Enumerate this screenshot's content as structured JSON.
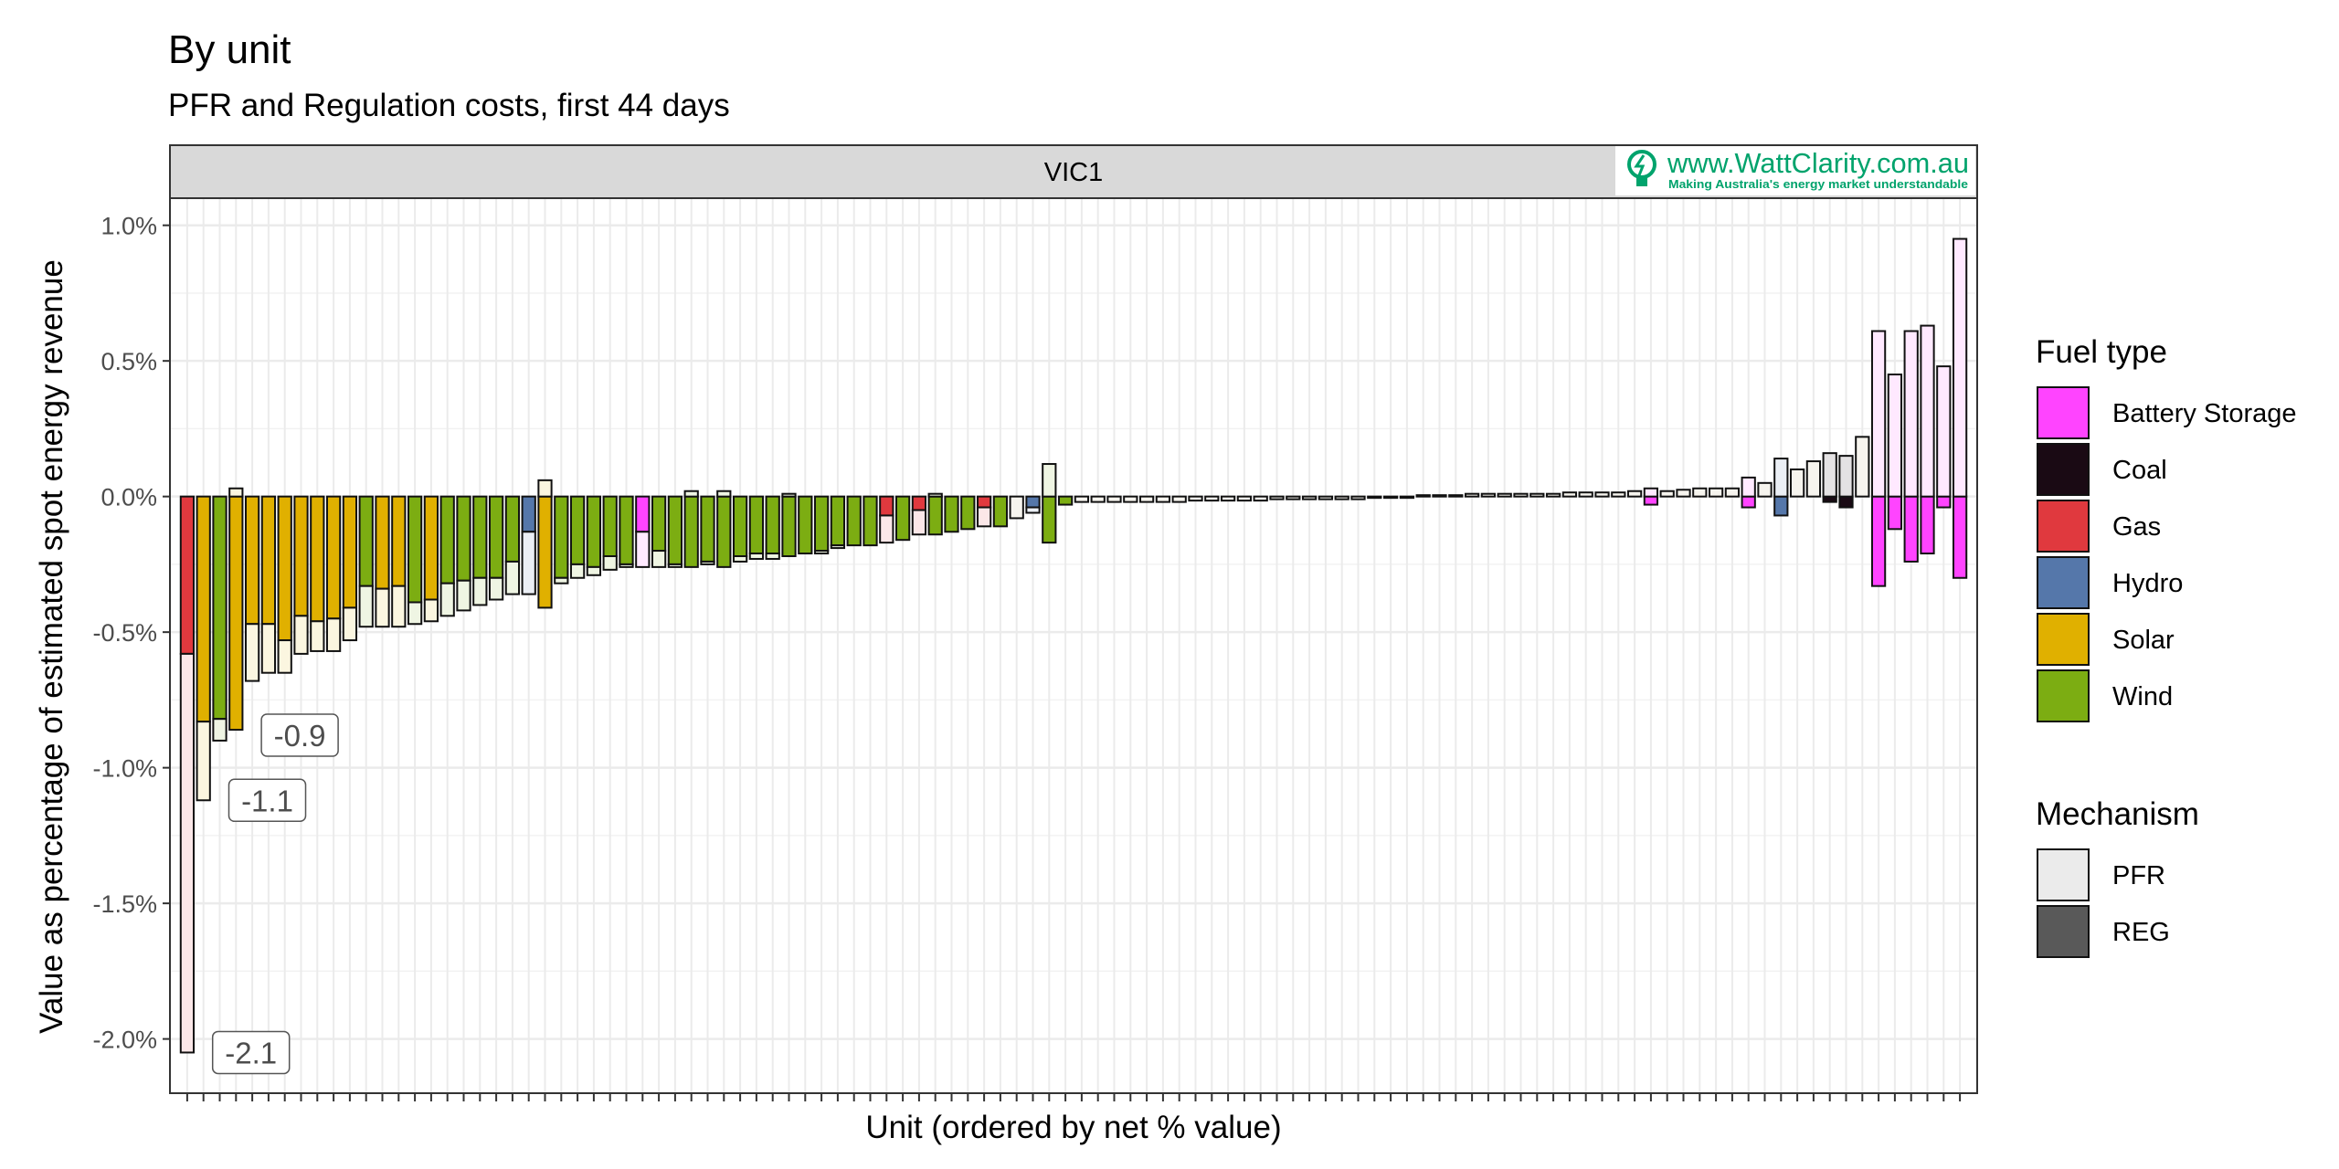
{
  "chart_data": {
    "type": "bar",
    "title": "By unit",
    "subtitle": "PFR and Regulation costs, first 44 days",
    "panel": "VIC1",
    "xlabel": "Unit (ordered by net % value)",
    "ylabel": "Value as percentage of estimated spot energy revenue",
    "ylim": [
      -2.2,
      1.1
    ],
    "yticks": [
      1.0,
      0.5,
      0.0,
      -0.5,
      -1.0,
      -1.5,
      -2.0
    ],
    "ytick_labels": [
      "1.0%",
      "0.5%",
      "0.0%",
      "-0.5%",
      "-1.0%",
      "-1.5%",
      "-2.0%"
    ],
    "grid": true,
    "legend_position": "right",
    "fuel_colors": {
      "Battery Storage": "#ff44ff",
      "Coal": "#1a0a14",
      "Gas": "#e0393e",
      "Hydro": "#5577aa",
      "Solar": "#e0b000",
      "Wind": "#7cad12",
      "None": "#f4f4ee"
    },
    "mechanism_colors": {
      "PFR": "#ebebeb",
      "REG": "#595959"
    },
    "legend": {
      "fuel_title": "Fuel type",
      "fuel_items": [
        "Battery Storage",
        "Coal",
        "Gas",
        "Hydro",
        "Solar",
        "Wind"
      ],
      "mechanism_title": "Mechanism",
      "mechanism_items": [
        "PFR",
        "REG"
      ]
    },
    "annotations": [
      {
        "unit": 1,
        "y": -2.05,
        "label": "-2.1"
      },
      {
        "unit": 2,
        "y": -1.12,
        "label": "-1.1"
      },
      {
        "unit": 4,
        "y": -0.88,
        "label": "-0.9"
      }
    ],
    "watermark": {
      "text": "www.WattClarity.com.au",
      "tagline": "Making Australia's energy market understandable"
    },
    "units": [
      {
        "fuel": "Gas",
        "reg": -0.58,
        "pfr": -1.47
      },
      {
        "fuel": "Solar",
        "reg": -0.83,
        "pfr": -0.29
      },
      {
        "fuel": "Wind",
        "reg": -0.82,
        "pfr": -0.08
      },
      {
        "fuel": "Solar",
        "reg": -0.86,
        "pfr": 0.03
      },
      {
        "fuel": "Solar",
        "reg": -0.47,
        "pfr": -0.21
      },
      {
        "fuel": "Solar",
        "reg": -0.47,
        "pfr": -0.18
      },
      {
        "fuel": "Solar",
        "reg": -0.53,
        "pfr": -0.12
      },
      {
        "fuel": "Solar",
        "reg": -0.44,
        "pfr": -0.14
      },
      {
        "fuel": "Solar",
        "reg": -0.46,
        "pfr": -0.11
      },
      {
        "fuel": "Solar",
        "reg": -0.45,
        "pfr": -0.12
      },
      {
        "fuel": "Solar",
        "reg": -0.41,
        "pfr": -0.12
      },
      {
        "fuel": "Wind",
        "reg": -0.33,
        "pfr": -0.15
      },
      {
        "fuel": "Solar",
        "reg": -0.34,
        "pfr": -0.14
      },
      {
        "fuel": "Solar",
        "reg": -0.33,
        "pfr": -0.15
      },
      {
        "fuel": "Wind",
        "reg": -0.39,
        "pfr": -0.08
      },
      {
        "fuel": "Solar",
        "reg": -0.38,
        "pfr": -0.08
      },
      {
        "fuel": "Wind",
        "reg": -0.32,
        "pfr": -0.12
      },
      {
        "fuel": "Wind",
        "reg": -0.31,
        "pfr": -0.11
      },
      {
        "fuel": "Wind",
        "reg": -0.3,
        "pfr": -0.1
      },
      {
        "fuel": "Wind",
        "reg": -0.3,
        "pfr": -0.08
      },
      {
        "fuel": "Wind",
        "reg": -0.24,
        "pfr": -0.12
      },
      {
        "fuel": "Hydro",
        "reg": -0.13,
        "pfr": -0.23
      },
      {
        "fuel": "Solar",
        "reg": -0.41,
        "pfr": 0.06
      },
      {
        "fuel": "Wind",
        "reg": -0.3,
        "pfr": -0.02
      },
      {
        "fuel": "Wind",
        "reg": -0.25,
        "pfr": -0.05
      },
      {
        "fuel": "Wind",
        "reg": -0.26,
        "pfr": -0.03
      },
      {
        "fuel": "Wind",
        "reg": -0.22,
        "pfr": -0.05
      },
      {
        "fuel": "Wind",
        "reg": -0.25,
        "pfr": -0.01
      },
      {
        "fuel": "Battery Storage",
        "reg": -0.13,
        "pfr": -0.13
      },
      {
        "fuel": "Wind",
        "reg": -0.2,
        "pfr": -0.06
      },
      {
        "fuel": "Wind",
        "reg": -0.25,
        "pfr": -0.01
      },
      {
        "fuel": "Wind",
        "reg": -0.26,
        "pfr": 0.02
      },
      {
        "fuel": "Wind",
        "reg": -0.24,
        "pfr": -0.01
      },
      {
        "fuel": "Wind",
        "reg": -0.26,
        "pfr": 0.02
      },
      {
        "fuel": "Wind",
        "reg": -0.22,
        "pfr": -0.02
      },
      {
        "fuel": "Wind",
        "reg": -0.21,
        "pfr": -0.02
      },
      {
        "fuel": "Wind",
        "reg": -0.21,
        "pfr": -0.02
      },
      {
        "fuel": "Wind",
        "reg": -0.22,
        "pfr": 0.01
      },
      {
        "fuel": "Wind",
        "reg": -0.21,
        "pfr": 0.0
      },
      {
        "fuel": "Wind",
        "reg": -0.2,
        "pfr": -0.01
      },
      {
        "fuel": "Wind",
        "reg": -0.18,
        "pfr": -0.01
      },
      {
        "fuel": "Wind",
        "reg": -0.18,
        "pfr": 0.0
      },
      {
        "fuel": "Wind",
        "reg": -0.18,
        "pfr": 0.0
      },
      {
        "fuel": "Gas",
        "reg": -0.07,
        "pfr": -0.1
      },
      {
        "fuel": "Wind",
        "reg": -0.16,
        "pfr": 0.0
      },
      {
        "fuel": "Gas",
        "reg": -0.05,
        "pfr": -0.09
      },
      {
        "fuel": "Wind",
        "reg": -0.14,
        "pfr": 0.01
      },
      {
        "fuel": "Wind",
        "reg": -0.13,
        "pfr": 0.0
      },
      {
        "fuel": "Wind",
        "reg": -0.12,
        "pfr": 0.0
      },
      {
        "fuel": "Gas",
        "reg": -0.04,
        "pfr": -0.07
      },
      {
        "fuel": "Wind",
        "reg": -0.11,
        "pfr": 0.0
      },
      {
        "fuel": "None",
        "reg": 0.0,
        "pfr": -0.08
      },
      {
        "fuel": "Hydro",
        "reg": -0.04,
        "pfr": -0.02
      },
      {
        "fuel": "Wind",
        "reg": -0.17,
        "pfr": 0.12
      },
      {
        "fuel": "Wind",
        "reg": -0.03,
        "pfr": 0.0
      },
      {
        "fuel": "None",
        "reg": 0.0,
        "pfr": -0.02
      },
      {
        "fuel": "None",
        "reg": 0.0,
        "pfr": -0.02
      },
      {
        "fuel": "None",
        "reg": 0.0,
        "pfr": -0.02
      },
      {
        "fuel": "None",
        "reg": 0.0,
        "pfr": -0.02
      },
      {
        "fuel": "None",
        "reg": 0.0,
        "pfr": -0.02
      },
      {
        "fuel": "None",
        "reg": 0.0,
        "pfr": -0.02
      },
      {
        "fuel": "None",
        "reg": 0.0,
        "pfr": -0.02
      },
      {
        "fuel": "None",
        "reg": 0.0,
        "pfr": -0.015
      },
      {
        "fuel": "None",
        "reg": 0.0,
        "pfr": -0.015
      },
      {
        "fuel": "None",
        "reg": 0.0,
        "pfr": -0.015
      },
      {
        "fuel": "None",
        "reg": 0.0,
        "pfr": -0.015
      },
      {
        "fuel": "None",
        "reg": 0.0,
        "pfr": -0.015
      },
      {
        "fuel": "None",
        "reg": 0.0,
        "pfr": -0.01
      },
      {
        "fuel": "None",
        "reg": 0.0,
        "pfr": -0.01
      },
      {
        "fuel": "None",
        "reg": 0.0,
        "pfr": -0.01
      },
      {
        "fuel": "None",
        "reg": 0.0,
        "pfr": -0.01
      },
      {
        "fuel": "None",
        "reg": 0.0,
        "pfr": -0.01
      },
      {
        "fuel": "None",
        "reg": 0.0,
        "pfr": -0.01
      },
      {
        "fuel": "None",
        "reg": 0.0,
        "pfr": -0.005
      },
      {
        "fuel": "None",
        "reg": 0.0,
        "pfr": -0.005
      },
      {
        "fuel": "None",
        "reg": 0.0,
        "pfr": -0.005
      },
      {
        "fuel": "None",
        "reg": 0.0,
        "pfr": 0.005
      },
      {
        "fuel": "None",
        "reg": 0.0,
        "pfr": 0.005
      },
      {
        "fuel": "None",
        "reg": 0.0,
        "pfr": 0.005
      },
      {
        "fuel": "None",
        "reg": 0.0,
        "pfr": 0.01
      },
      {
        "fuel": "None",
        "reg": 0.0,
        "pfr": 0.01
      },
      {
        "fuel": "None",
        "reg": 0.0,
        "pfr": 0.01
      },
      {
        "fuel": "None",
        "reg": 0.0,
        "pfr": 0.01
      },
      {
        "fuel": "None",
        "reg": 0.0,
        "pfr": 0.01
      },
      {
        "fuel": "None",
        "reg": 0.0,
        "pfr": 0.01
      },
      {
        "fuel": "None",
        "reg": 0.0,
        "pfr": 0.015
      },
      {
        "fuel": "None",
        "reg": 0.0,
        "pfr": 0.015
      },
      {
        "fuel": "None",
        "reg": 0.0,
        "pfr": 0.015
      },
      {
        "fuel": "None",
        "reg": 0.0,
        "pfr": 0.015
      },
      {
        "fuel": "None",
        "reg": 0.0,
        "pfr": 0.02
      },
      {
        "fuel": "Battery Storage",
        "reg": -0.03,
        "pfr": 0.03
      },
      {
        "fuel": "None",
        "reg": 0.0,
        "pfr": 0.02
      },
      {
        "fuel": "None",
        "reg": 0.0,
        "pfr": 0.025
      },
      {
        "fuel": "None",
        "reg": 0.0,
        "pfr": 0.03
      },
      {
        "fuel": "None",
        "reg": 0.0,
        "pfr": 0.03
      },
      {
        "fuel": "None",
        "reg": 0.0,
        "pfr": 0.03
      },
      {
        "fuel": "Battery Storage",
        "reg": -0.04,
        "pfr": 0.07
      },
      {
        "fuel": "None",
        "reg": 0.0,
        "pfr": 0.05
      },
      {
        "fuel": "Hydro",
        "reg": -0.07,
        "pfr": 0.14
      },
      {
        "fuel": "None",
        "reg": 0.0,
        "pfr": 0.1
      },
      {
        "fuel": "None",
        "reg": 0.0,
        "pfr": 0.13
      },
      {
        "fuel": "Coal",
        "reg": -0.02,
        "pfr": 0.16
      },
      {
        "fuel": "Coal",
        "reg": -0.04,
        "pfr": 0.15
      },
      {
        "fuel": "None",
        "reg": 0.0,
        "pfr": 0.22
      },
      {
        "fuel": "Battery Storage",
        "reg": -0.33,
        "pfr": 0.61
      },
      {
        "fuel": "Battery Storage",
        "reg": -0.12,
        "pfr": 0.45
      },
      {
        "fuel": "Battery Storage",
        "reg": -0.24,
        "pfr": 0.61
      },
      {
        "fuel": "Battery Storage",
        "reg": -0.21,
        "pfr": 0.63
      },
      {
        "fuel": "Battery Storage",
        "reg": -0.04,
        "pfr": 0.48
      },
      {
        "fuel": "Battery Storage",
        "reg": -0.3,
        "pfr": 0.95
      }
    ]
  }
}
